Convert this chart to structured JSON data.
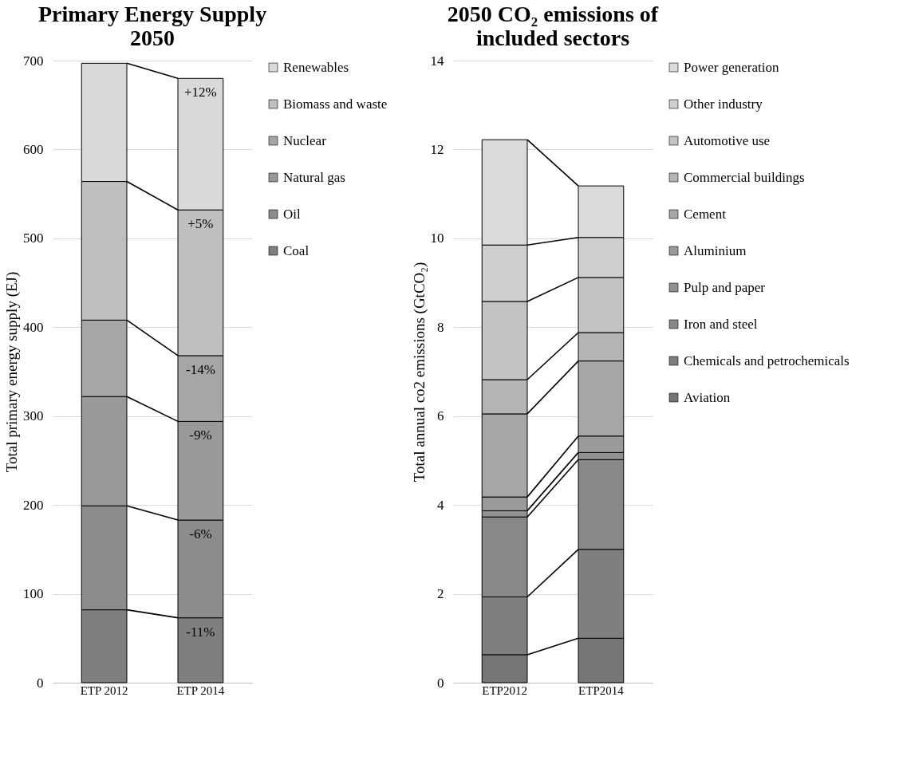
{
  "chart_data": [
    {
      "type": "bar",
      "title": "Primary Energy Supply 2050",
      "ylabel": "Total primary energy supply (EJ)",
      "categories": [
        "ETP 2012",
        "ETP 2014"
      ],
      "stacked": true,
      "legend": "right",
      "grid": "y",
      "ylim": [
        0,
        700
      ],
      "yticks": [
        0,
        100,
        200,
        300,
        400,
        500,
        600,
        700
      ],
      "series": [
        {
          "name": "Coal",
          "color": "#7f7f7f",
          "values": [
            82,
            73
          ]
        },
        {
          "name": "Oil",
          "color": "#8c8c8c",
          "values": [
            117,
            110
          ]
        },
        {
          "name": "Natural gas",
          "color": "#999999",
          "values": [
            123,
            111
          ]
        },
        {
          "name": "Nuclear",
          "color": "#a6a6a6",
          "values": [
            86,
            74
          ]
        },
        {
          "name": "Biomass and waste",
          "color": "#bfbfbf",
          "values": [
            156,
            164
          ]
        },
        {
          "name": "Renewables",
          "color": "#d9d9d9",
          "values": [
            133,
            148
          ]
        }
      ],
      "annotations": [
        {
          "text": "-11%",
          "x": "ETP 2014",
          "y": 73
        },
        {
          "text": "-6%",
          "x": "ETP 2014",
          "y": 183
        },
        {
          "text": "-9%",
          "x": "ETP 2014",
          "y": 294
        },
        {
          "text": "-14%",
          "x": "ETP 2014",
          "y": 368
        },
        {
          "text": "+5%",
          "x": "ETP 2014",
          "y": 532
        },
        {
          "text": "+12%",
          "x": "ETP 2014",
          "y": 680
        }
      ]
    },
    {
      "type": "bar",
      "title": "2050 CO₂ emissions of included sectors",
      "ylabel": "Total annual co2 emissions (GtCO₂)",
      "categories": [
        "ETP2012",
        "ETP2014"
      ],
      "stacked": true,
      "legend": "right",
      "grid": "y",
      "ylim": [
        0,
        14
      ],
      "yticks": [
        {
          "value": 0,
          "label": "0"
        },
        {
          "value": 2,
          "label": "2"
        },
        {
          "value": 4,
          "label": "4"
        },
        {
          "value": 6,
          "label": "6"
        },
        {
          "value": 8,
          "label": "8"
        },
        {
          "value": 10,
          "label": "10"
        },
        {
          "value": 12,
          "label": "12"
        },
        {
          "value": 14,
          "label": "14"
        }
      ],
      "series": [
        {
          "name": "Aviation",
          "color": "#767676",
          "values": [
            0.63,
            1.0
          ]
        },
        {
          "name": "Chemicals and petrochemicals",
          "color": "#7f7f7f",
          "values": [
            1.3,
            2.0
          ]
        },
        {
          "name": "Iron and steel",
          "color": "#888888",
          "values": [
            1.8,
            2.02
          ]
        },
        {
          "name": "Pulp and paper",
          "color": "#919191",
          "values": [
            0.14,
            0.16
          ]
        },
        {
          "name": "Aluminium",
          "color": "#9a9a9a",
          "values": [
            0.31,
            0.37
          ]
        },
        {
          "name": "Cement",
          "color": "#a6a6a6",
          "values": [
            1.87,
            1.69
          ]
        },
        {
          "name": "Commercial buildings",
          "color": "#b4b4b4",
          "values": [
            0.77,
            0.64
          ]
        },
        {
          "name": "Automotive use",
          "color": "#c3c3c3",
          "values": [
            1.76,
            1.24
          ]
        },
        {
          "name": "Other industry",
          "color": "#cfcfcf",
          "values": [
            1.27,
            0.9
          ]
        },
        {
          "name": "Power generation",
          "color": "#dadada",
          "values": [
            2.37,
            1.16
          ]
        }
      ]
    }
  ]
}
